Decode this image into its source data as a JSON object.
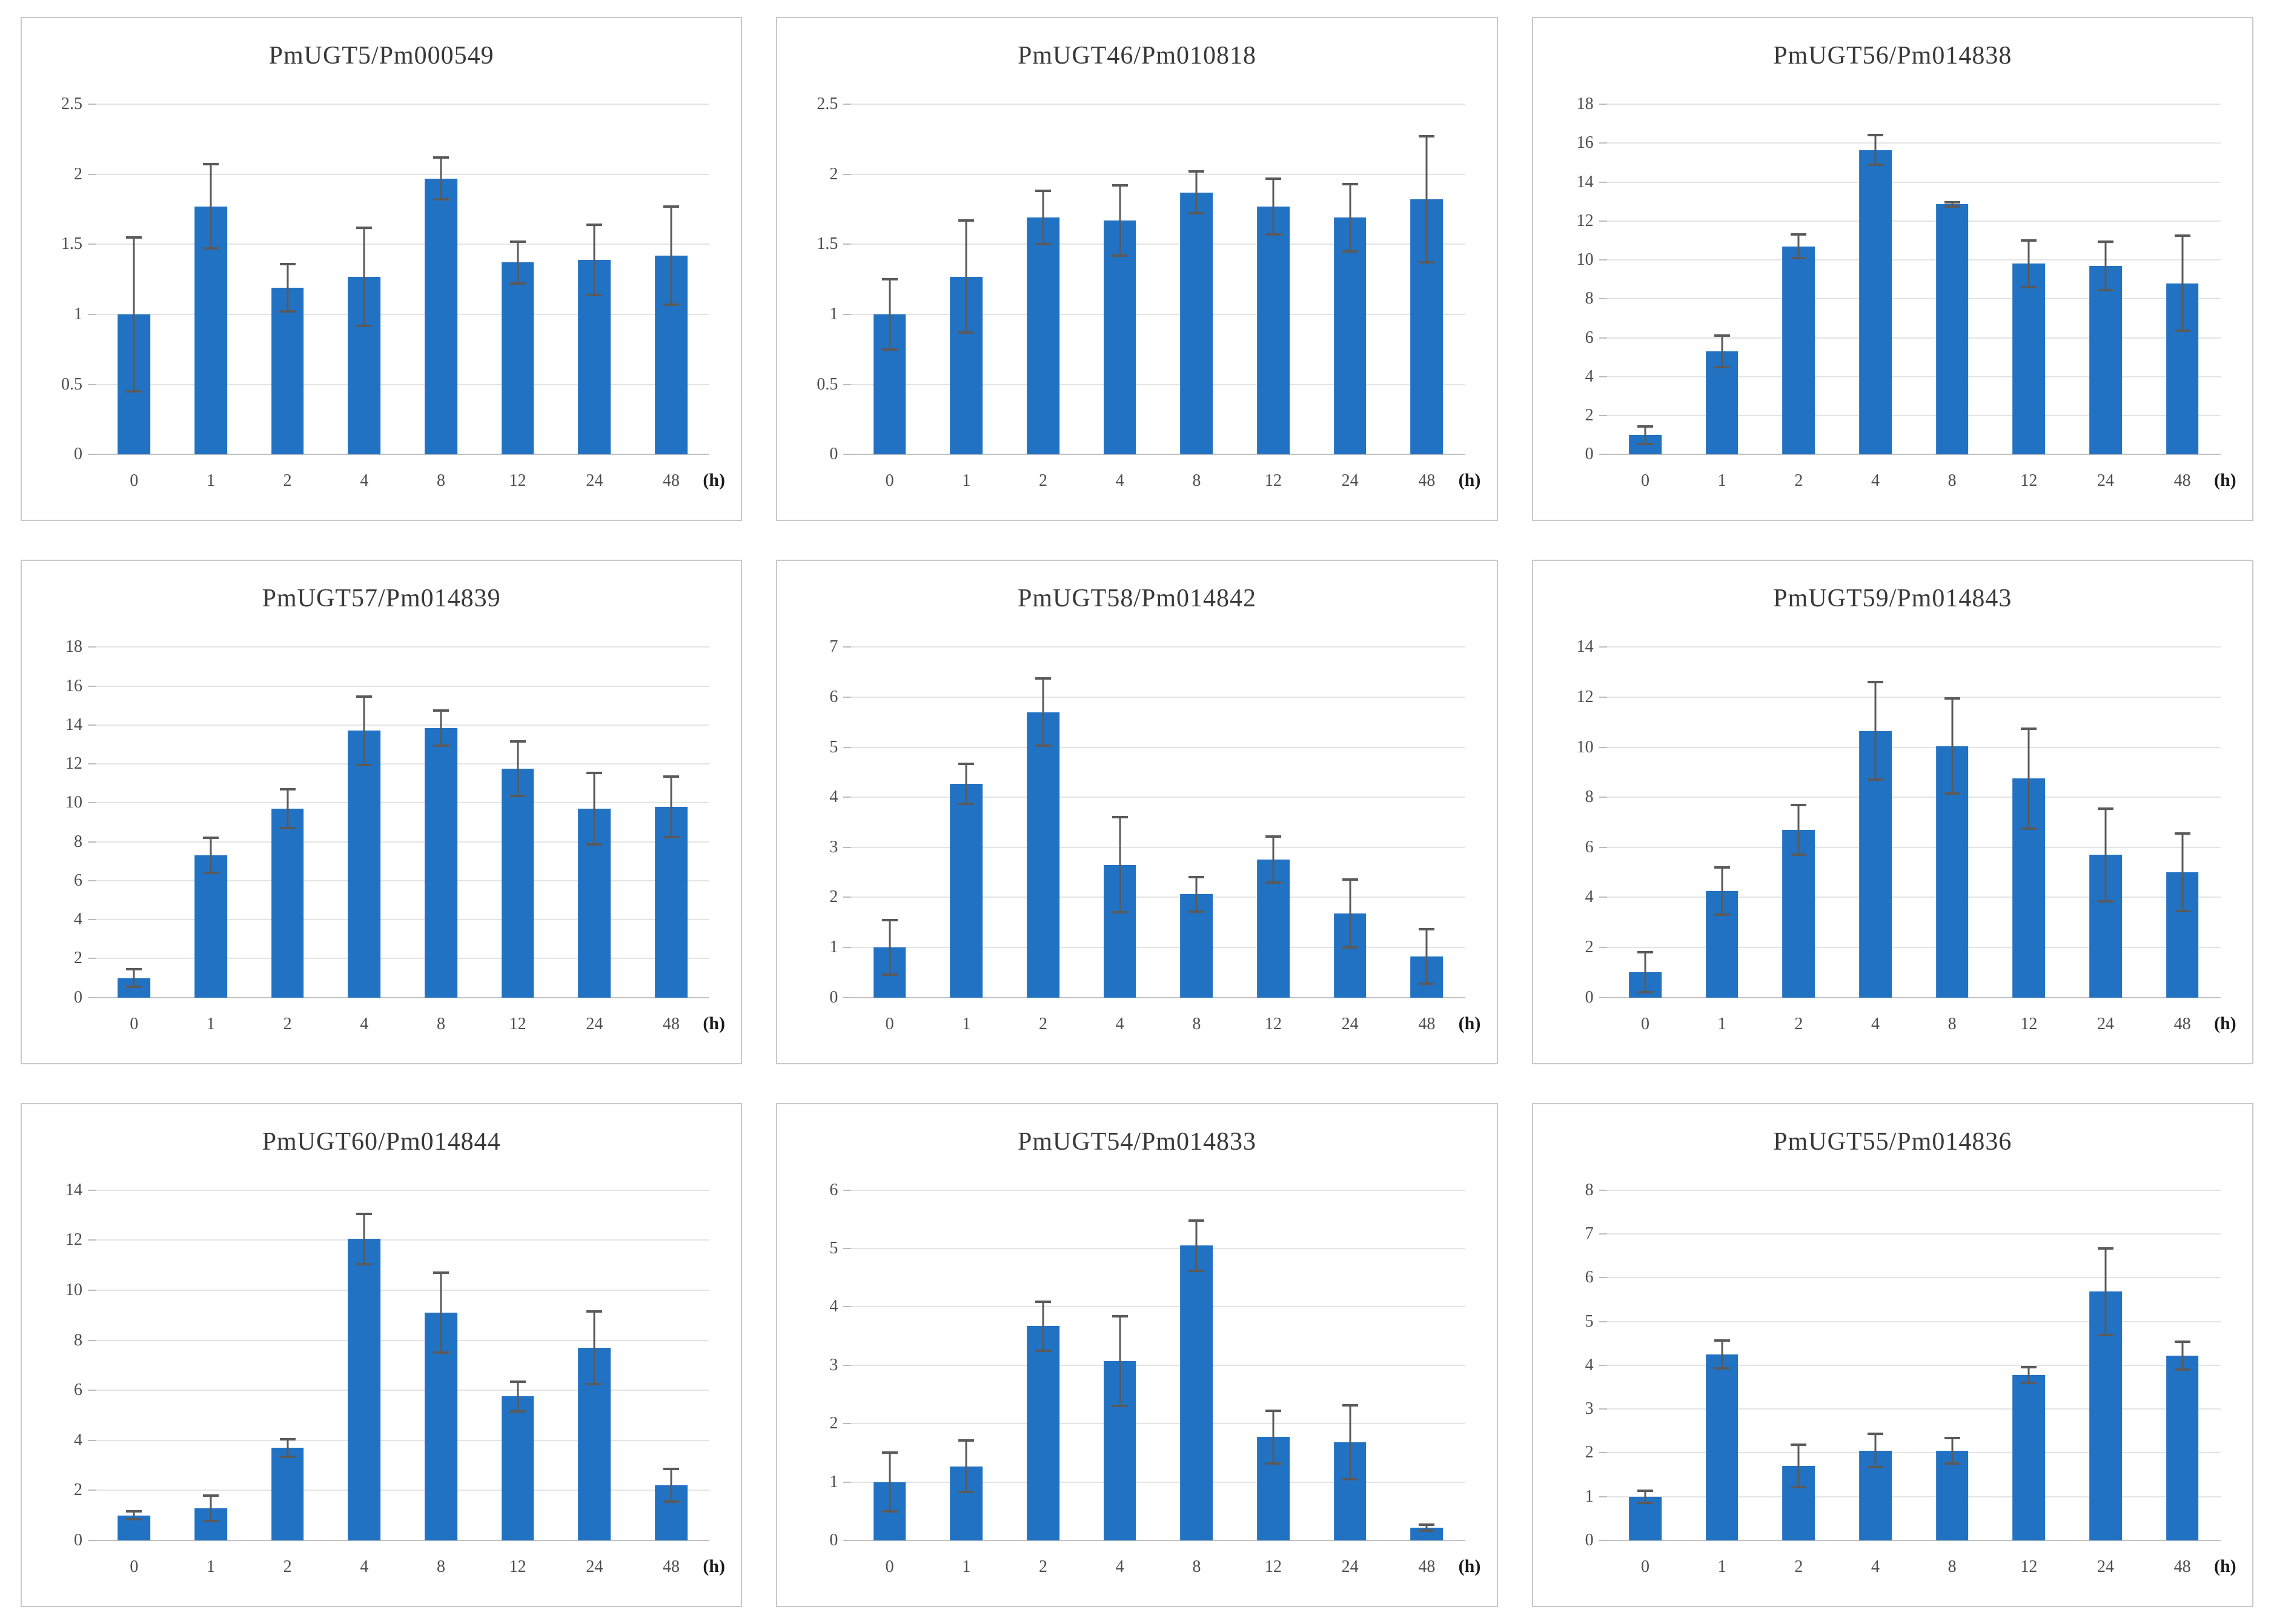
{
  "figure": {
    "x_unit_label": "(h)",
    "bar_color": "#2272c4",
    "error_bar_color": "#5a5a5a",
    "gridline_color": "#e4e4e4"
  },
  "chart_data": [
    {
      "type": "bar",
      "title": "PmUGT5/Pm000549",
      "categories": [
        "0",
        "1",
        "2",
        "4",
        "8",
        "12",
        "24",
        "48"
      ],
      "values": [
        1.0,
        1.77,
        1.19,
        1.27,
        1.97,
        1.37,
        1.39,
        1.42
      ],
      "errors": [
        0.55,
        0.3,
        0.17,
        0.35,
        0.15,
        0.15,
        0.25,
        0.35
      ],
      "ylim": [
        0,
        2.5
      ],
      "yticks": [
        0,
        0.5,
        1,
        1.5,
        2,
        2.5
      ],
      "ytick_labels": [
        "0",
        "0.5",
        "1",
        "1.5",
        "2",
        "2.5"
      ],
      "xlabel": "(h)",
      "ylabel": "",
      "grid": true,
      "legend": "none"
    },
    {
      "type": "bar",
      "title": "PmUGT46/Pm010818",
      "categories": [
        "0",
        "1",
        "2",
        "4",
        "8",
        "12",
        "24",
        "48"
      ],
      "values": [
        1.0,
        1.27,
        1.69,
        1.67,
        1.87,
        1.77,
        1.69,
        1.82
      ],
      "errors": [
        0.25,
        0.4,
        0.19,
        0.25,
        0.15,
        0.2,
        0.24,
        0.45
      ],
      "ylim": [
        0,
        2.5
      ],
      "yticks": [
        0,
        0.5,
        1,
        1.5,
        2,
        2.5
      ],
      "ytick_labels": [
        "0",
        "0.5",
        "1",
        "1.5",
        "2",
        "2.5"
      ],
      "xlabel": "(h)",
      "ylabel": "",
      "grid": true,
      "legend": "none"
    },
    {
      "type": "bar",
      "title": "PmUGT56/Pm014838",
      "categories": [
        "0",
        "1",
        "2",
        "4",
        "8",
        "12",
        "24",
        "48"
      ],
      "values": [
        1.0,
        5.3,
        10.7,
        15.65,
        12.85,
        9.8,
        9.7,
        8.8
      ],
      "errors": [
        0.45,
        0.8,
        0.6,
        0.75,
        0.12,
        1.2,
        1.25,
        2.45
      ],
      "ylim": [
        0,
        18
      ],
      "yticks": [
        0,
        2,
        4,
        6,
        8,
        10,
        12,
        14,
        16,
        18
      ],
      "ytick_labels": [
        "0",
        "2",
        "4",
        "6",
        "8",
        "10",
        "12",
        "14",
        "16",
        "18"
      ],
      "xlabel": "(h)",
      "ylabel": "",
      "grid": true,
      "legend": "none"
    },
    {
      "type": "bar",
      "title": "PmUGT57/Pm014839",
      "categories": [
        "0",
        "1",
        "2",
        "4",
        "8",
        "12",
        "24",
        "48"
      ],
      "values": [
        1.0,
        7.3,
        9.7,
        13.7,
        13.85,
        11.75,
        9.7,
        9.8
      ],
      "errors": [
        0.45,
        0.9,
        1.0,
        1.75,
        0.9,
        1.4,
        1.85,
        1.55
      ],
      "ylim": [
        0,
        18
      ],
      "yticks": [
        0,
        2,
        4,
        6,
        8,
        10,
        12,
        14,
        16,
        18
      ],
      "ytick_labels": [
        "0",
        "2",
        "4",
        "6",
        "8",
        "10",
        "12",
        "14",
        "16",
        "18"
      ],
      "xlabel": "(h)",
      "ylabel": "",
      "grid": true,
      "legend": "none"
    },
    {
      "type": "bar",
      "title": "PmUGT58/Pm014842",
      "categories": [
        "0",
        "1",
        "2",
        "4",
        "8",
        "12",
        "24",
        "48"
      ],
      "values": [
        1.0,
        4.27,
        5.7,
        2.65,
        2.06,
        2.76,
        1.68,
        0.82
      ],
      "errors": [
        0.55,
        0.4,
        0.67,
        0.95,
        0.34,
        0.46,
        0.68,
        0.54
      ],
      "ylim": [
        0,
        7
      ],
      "yticks": [
        0,
        1,
        2,
        3,
        4,
        5,
        6,
        7
      ],
      "ytick_labels": [
        "0",
        "1",
        "2",
        "3",
        "4",
        "5",
        "6",
        "7"
      ],
      "xlabel": "(h)",
      "ylabel": "",
      "grid": true,
      "legend": "none"
    },
    {
      "type": "bar",
      "title": "PmUGT59/Pm014843",
      "categories": [
        "0",
        "1",
        "2",
        "4",
        "8",
        "12",
        "24",
        "48"
      ],
      "values": [
        1.0,
        4.25,
        6.7,
        10.65,
        10.05,
        8.75,
        5.7,
        5.0
      ],
      "errors": [
        0.8,
        0.95,
        1.0,
        1.95,
        1.9,
        2.0,
        1.85,
        1.55
      ],
      "ylim": [
        0,
        14
      ],
      "yticks": [
        0,
        2,
        4,
        6,
        8,
        10,
        12,
        14
      ],
      "ytick_labels": [
        "0",
        "2",
        "4",
        "6",
        "8",
        "10",
        "12",
        "14"
      ],
      "xlabel": "(h)",
      "ylabel": "",
      "grid": true,
      "legend": "none"
    },
    {
      "type": "bar",
      "title": "PmUGT60/Pm014844",
      "categories": [
        "0",
        "1",
        "2",
        "4",
        "8",
        "12",
        "24",
        "48"
      ],
      "values": [
        1.0,
        1.28,
        3.7,
        12.05,
        9.1,
        5.75,
        7.7,
        2.2
      ],
      "errors": [
        0.15,
        0.5,
        0.35,
        1.0,
        1.6,
        0.6,
        1.45,
        0.65
      ],
      "ylim": [
        0,
        14
      ],
      "yticks": [
        0,
        2,
        4,
        6,
        8,
        10,
        12,
        14
      ],
      "ytick_labels": [
        "0",
        "2",
        "4",
        "6",
        "8",
        "10",
        "12",
        "14"
      ],
      "xlabel": "(h)",
      "ylabel": "",
      "grid": true,
      "legend": "none"
    },
    {
      "type": "bar",
      "title": "PmUGT54/Pm014833",
      "categories": [
        "0",
        "1",
        "2",
        "4",
        "8",
        "12",
        "24",
        "48"
      ],
      "values": [
        1.0,
        1.27,
        3.67,
        3.07,
        5.05,
        1.77,
        1.68,
        0.22
      ],
      "errors": [
        0.5,
        0.44,
        0.42,
        0.77,
        0.43,
        0.45,
        0.63,
        0.05
      ],
      "ylim": [
        0,
        6
      ],
      "yticks": [
        0,
        1,
        2,
        3,
        4,
        5,
        6
      ],
      "ytick_labels": [
        "0",
        "1",
        "2",
        "3",
        "4",
        "5",
        "6"
      ],
      "xlabel": "(h)",
      "ylabel": "",
      "grid": true,
      "legend": "none"
    },
    {
      "type": "bar",
      "title": "PmUGT55/Pm014836",
      "categories": [
        "0",
        "1",
        "2",
        "4",
        "8",
        "12",
        "24",
        "48"
      ],
      "values": [
        1.0,
        4.25,
        1.7,
        2.05,
        2.05,
        3.77,
        5.68,
        4.22
      ],
      "errors": [
        0.14,
        0.32,
        0.48,
        0.38,
        0.29,
        0.18,
        0.99,
        0.32
      ],
      "ylim": [
        0,
        8
      ],
      "yticks": [
        0,
        1,
        2,
        3,
        4,
        5,
        6,
        7,
        8
      ],
      "ytick_labels": [
        "0",
        "1",
        "2",
        "3",
        "4",
        "5",
        "6",
        "7",
        "8"
      ],
      "xlabel": "(h)",
      "ylabel": "",
      "grid": true,
      "legend": "none"
    }
  ]
}
